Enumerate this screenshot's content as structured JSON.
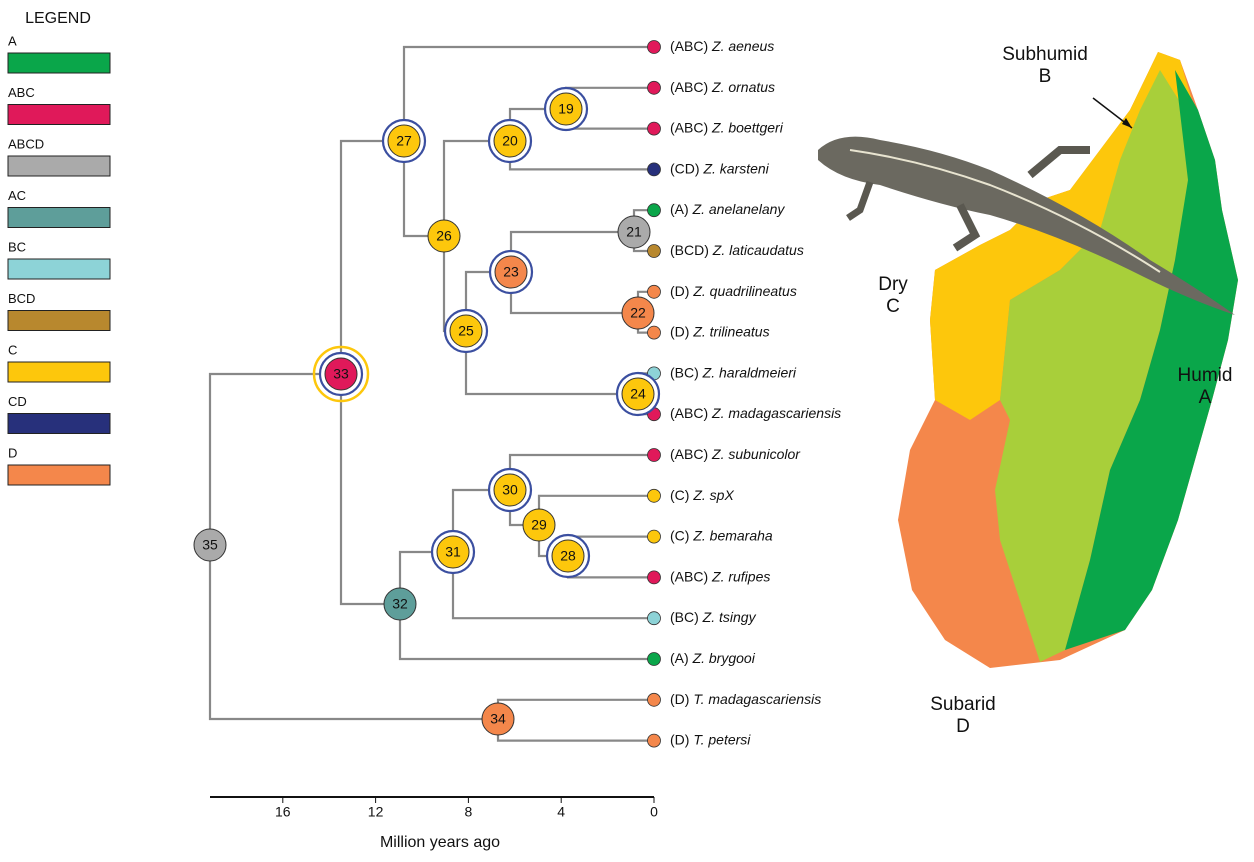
{
  "legend": {
    "title": "LEGEND",
    "items": [
      {
        "label": "A",
        "color": "#0aa64a"
      },
      {
        "label": "ABC",
        "color": "#e0195a"
      },
      {
        "label": "ABCD",
        "color": "#aaaaaa"
      },
      {
        "label": "AC",
        "color": "#5e9e9a"
      },
      {
        "label": "BC",
        "color": "#8dd3d7"
      },
      {
        "label": "BCD",
        "color": "#b8882e"
      },
      {
        "label": "C",
        "color": "#fdc70c"
      },
      {
        "label": "CD",
        "color": "#27307b"
      },
      {
        "label": "D",
        "color": "#f4874b"
      }
    ]
  },
  "tree": {
    "nodes": [
      {
        "label": 19,
        "color": "#fdc70c",
        "ring": true
      },
      {
        "label": 20,
        "color": "#fdc70c",
        "ring": true
      },
      {
        "label": 21,
        "color": "#aaaaaa",
        "ring": false
      },
      {
        "label": 22,
        "color": "#f4874b",
        "ring": false
      },
      {
        "label": 23,
        "color": "#f4874b",
        "ring": true
      },
      {
        "label": 24,
        "color": "#fdc70c",
        "ring": true
      },
      {
        "label": 25,
        "color": "#fdc70c",
        "ring": true
      },
      {
        "label": 26,
        "color": "#fdc70c",
        "ring": false
      },
      {
        "label": 27,
        "color": "#fdc70c",
        "ring": true
      },
      {
        "label": 28,
        "color": "#fdc70c",
        "ring": true
      },
      {
        "label": 29,
        "color": "#fdc70c",
        "ring": false
      },
      {
        "label": 30,
        "color": "#fdc70c",
        "ring": true
      },
      {
        "label": 31,
        "color": "#fdc70c",
        "ring": true
      },
      {
        "label": 32,
        "color": "#5e9e9a",
        "ring": false
      },
      {
        "label": 33,
        "color": "#e0195a",
        "ring": true,
        "outer_ring": "#fdc70c"
      },
      {
        "label": 34,
        "color": "#f4874b",
        "ring": false
      },
      {
        "label": 35,
        "color": "#aaaaaa",
        "ring": false
      }
    ],
    "tips": [
      {
        "region": "(ABC)",
        "name": "Z. aeneus",
        "color": "#e0195a"
      },
      {
        "region": "(ABC)",
        "name": "Z. ornatus",
        "color": "#e0195a"
      },
      {
        "region": "(ABC)",
        "name": "Z. boettgeri",
        "color": "#e0195a"
      },
      {
        "region": "(CD)",
        "name": "Z. karsteni",
        "color": "#27307b"
      },
      {
        "region": "(A)",
        "name": "Z. anelanelany",
        "color": "#0aa64a"
      },
      {
        "region": "(BCD)",
        "name": "Z. laticaudatus",
        "color": "#b8882e"
      },
      {
        "region": "(D)",
        "name": "Z. quadrilineatus",
        "color": "#f4874b"
      },
      {
        "region": "(D)",
        "name": "Z. trilineatus",
        "color": "#f4874b"
      },
      {
        "region": "(BC)",
        "name": "Z. haraldmeieri",
        "color": "#8dd3d7"
      },
      {
        "region": "(ABC)",
        "name": "Z. madagascariensis",
        "color": "#e0195a"
      },
      {
        "region": "(ABC)",
        "name": "Z. subunicolor",
        "color": "#e0195a"
      },
      {
        "region": "(C)",
        "name": "Z. spX",
        "color": "#fdc70c"
      },
      {
        "region": "(C)",
        "name": "Z. bemaraha",
        "color": "#fdc70c"
      },
      {
        "region": "(ABC)",
        "name": "Z. rufipes",
        "color": "#e0195a"
      },
      {
        "region": "(BC)",
        "name": "Z. tsingy",
        "color": "#8dd3d7"
      },
      {
        "region": "(A)",
        "name": "Z. brygooi",
        "color": "#0aa64a"
      },
      {
        "region": "(D)",
        "name": "T. madagascariensis",
        "color": "#f4874b"
      },
      {
        "region": "(D)",
        "name": "T. petersi",
        "color": "#f4874b"
      }
    ]
  },
  "axis": {
    "ticks": [
      16,
      12,
      8,
      4,
      0
    ],
    "label": "Million years ago"
  },
  "map": {
    "labels": [
      {
        "name": "Subhumid",
        "code": "B"
      },
      {
        "name": "Dry",
        "code": "C"
      },
      {
        "name": "Humid",
        "code": "A"
      },
      {
        "name": "Subarid",
        "code": "D"
      }
    ]
  }
}
